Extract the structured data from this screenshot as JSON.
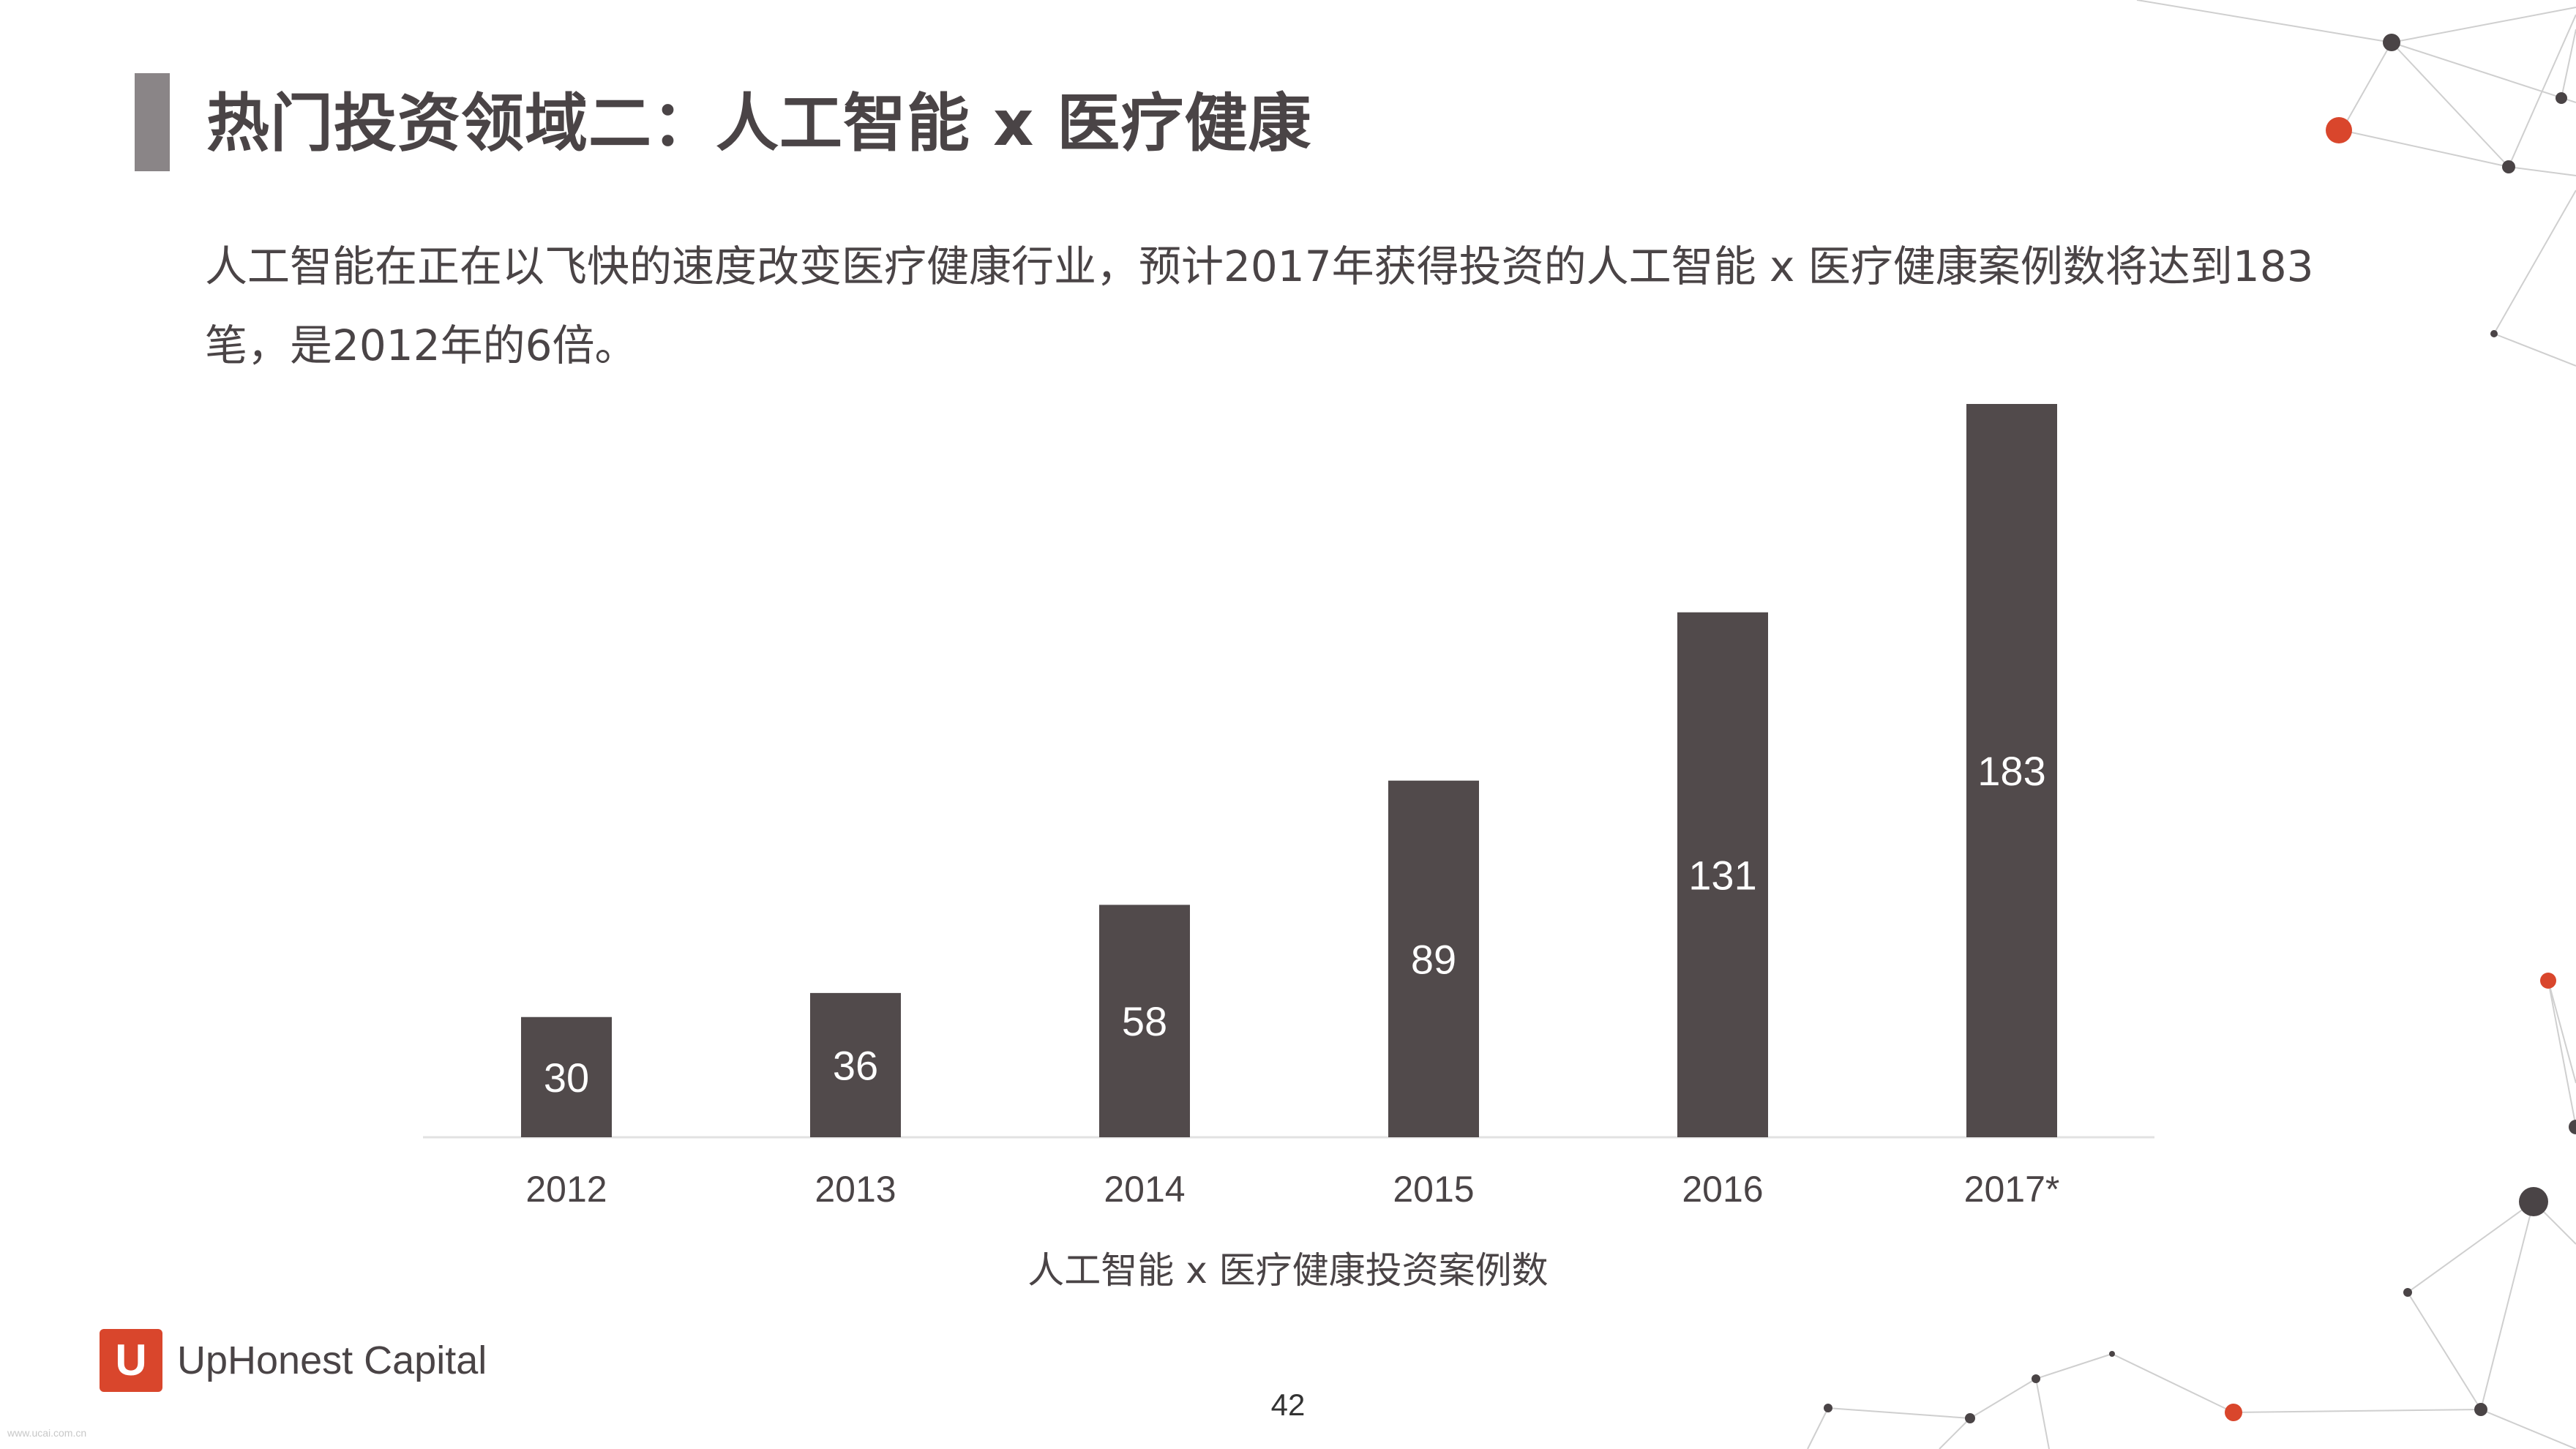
{
  "slide": {
    "title": "热门投资领域二：人工智能 x 医疗健康",
    "description": "人工智能在正在以飞快的速度改变医疗健康行业，预计2017年获得投资的人工智能  x  医疗健康案例数将达到183笔，是2012年的6倍。",
    "page_number": "42",
    "logo_mark": "U",
    "logo_text": "UpHonest Capital",
    "watermark": "www.ucai.com.cn"
  },
  "colors": {
    "bar": "#514a4b",
    "title_accent": "#8a8587",
    "logo_red": "#d9462c",
    "decor_red": "#d9462c",
    "decor_dark": "#4a4446"
  },
  "chart_data": {
    "type": "bar",
    "categories": [
      "2012",
      "2013",
      "2014",
      "2015",
      "2016",
      "2017*"
    ],
    "values": [
      30,
      36,
      58,
      89,
      131,
      183
    ],
    "data_labels": [
      "30",
      "36",
      "58",
      "89",
      "131",
      "183"
    ],
    "title": "",
    "xlabel": "人工智能 x 医疗健康投资案例数",
    "ylabel": "",
    "ylim": [
      0,
      183
    ],
    "grid": false,
    "legend": "none"
  }
}
